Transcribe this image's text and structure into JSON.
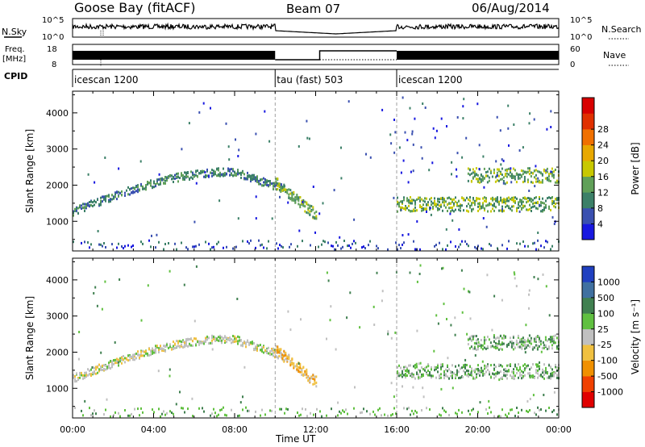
{
  "header": {
    "station": "Goose Bay (fitACF)",
    "beam": "Beam 07",
    "date": "06/Aug/2014"
  },
  "side_labels": {
    "nsky": "N.Sky",
    "nsky_hi": "10^5",
    "nsky_lo": "10^0",
    "nsearch": "N.Search",
    "nsearch_hi": "10^5",
    "nsearch_lo": "10^0",
    "freq_line1": "Freq.",
    "freq_line2": "[MHz]",
    "freq_hi": "18",
    "freq_lo": "8",
    "nave": "Nave",
    "nave_hi": "60",
    "nave_lo": "0",
    "cpid": "CPID"
  },
  "cpid_segments": [
    {
      "label": "icescan 1200",
      "start_hour": 0,
      "end_hour": 10
    },
    {
      "label": "tau (fast) 503",
      "start_hour": 10,
      "end_hour": 16
    },
    {
      "label": "icescan 1200",
      "start_hour": 16,
      "end_hour": 24
    }
  ],
  "chart_data": [
    {
      "type": "heatmap",
      "ylabel": "Slant Range [km]",
      "xlabel": "",
      "xlim": [
        0,
        24
      ],
      "ylim": [
        180,
        4600
      ],
      "yticks": [
        1000,
        2000,
        3000,
        4000
      ],
      "colorbar": {
        "label": "Power [dB]",
        "ticks": [
          "4",
          "8",
          "12",
          "16",
          "20",
          "24",
          "28"
        ],
        "colors": [
          "#1818e0",
          "#3a50b0",
          "#3c8068",
          "#60a058",
          "#c8c800",
          "#e8a800",
          "#f07000",
          "#e03000",
          "#d80000"
        ]
      },
      "features": [
        {
          "kind": "arc",
          "x_start": 0,
          "x_end": 10.5,
          "range_start": 1300,
          "range_peak": 2400,
          "range_end": 1900,
          "value": "12"
        },
        {
          "kind": "patch",
          "x_start": 10,
          "x_end": 12,
          "range_start": 2100,
          "range_end": 1200,
          "value": "16"
        },
        {
          "kind": "band",
          "x_start": 16,
          "x_end": 24,
          "range": 1500,
          "value": "16"
        },
        {
          "kind": "band",
          "x_start": 19.5,
          "x_end": 24,
          "range": 2300,
          "value": "16"
        }
      ]
    },
    {
      "type": "heatmap",
      "ylabel": "Slant Range [km]",
      "xlabel": "Time UT",
      "xlim": [
        0,
        24
      ],
      "ylim": [
        180,
        4600
      ],
      "yticks": [
        1000,
        2000,
        3000,
        4000
      ],
      "xticks": [
        "00:00",
        "04:00",
        "08:00",
        "12:00",
        "16:00",
        "20:00",
        "00:00"
      ],
      "colorbar": {
        "label": "Velocity [m s⁻¹]",
        "ticks": [
          "1000",
          "500",
          "100",
          "25",
          "-25",
          "-100",
          "-500",
          "-1000"
        ],
        "colors": [
          "#2040c0",
          "#4070a0",
          "#408050",
          "#60c040",
          "#c0c0c0",
          "#f0c040",
          "#f09000",
          "#f04000",
          "#e00000"
        ]
      },
      "features": [
        {
          "kind": "arc",
          "x_start": 0,
          "x_end": 10.5,
          "range_start": 1300,
          "range_peak": 2400,
          "range_end": 1900,
          "value": "-25"
        },
        {
          "kind": "patch",
          "x_start": 10,
          "x_end": 12,
          "range_start": 2100,
          "range_end": 1200,
          "value": "-100"
        },
        {
          "kind": "band",
          "x_start": 16,
          "x_end": 24,
          "range": 1500,
          "value": "25"
        },
        {
          "kind": "band",
          "x_start": 19.5,
          "x_end": 24,
          "range": 2300,
          "value": "25"
        }
      ]
    }
  ]
}
